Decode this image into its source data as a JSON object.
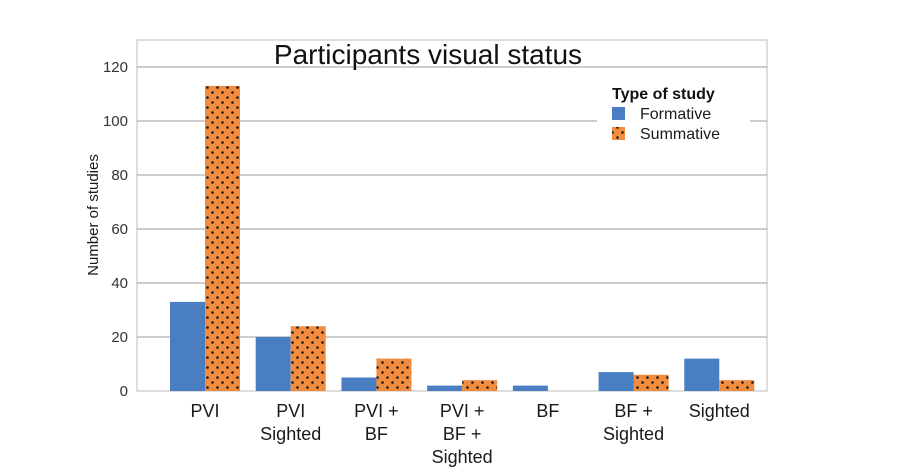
{
  "chart_data": {
    "type": "bar",
    "title": "Participants visual status",
    "xlabel": "",
    "ylabel": "Number of studies",
    "ylim": [
      0,
      130
    ],
    "yticks": [
      0,
      20,
      40,
      60,
      80,
      100,
      120
    ],
    "grid": true,
    "legend": {
      "title": "Type of study",
      "placement": "top-right"
    },
    "categories": [
      [
        "PVI"
      ],
      [
        "PVI",
        "Sighted"
      ],
      [
        "PVI +",
        "BF"
      ],
      [
        "PVI +",
        "BF +",
        "Sighted"
      ],
      [
        "BF"
      ],
      [
        "BF +",
        "Sighted"
      ],
      [
        "Sighted"
      ]
    ],
    "series": [
      {
        "name": "Formative",
        "values": [
          33,
          20,
          5,
          2,
          2,
          7,
          12
        ],
        "color": "#4a7ec2",
        "pattern": "solid"
      },
      {
        "name": "Summative",
        "values": [
          113,
          24,
          12,
          4,
          0,
          6,
          4
        ],
        "color": "#f28c3e",
        "pattern": "dots"
      }
    ]
  }
}
